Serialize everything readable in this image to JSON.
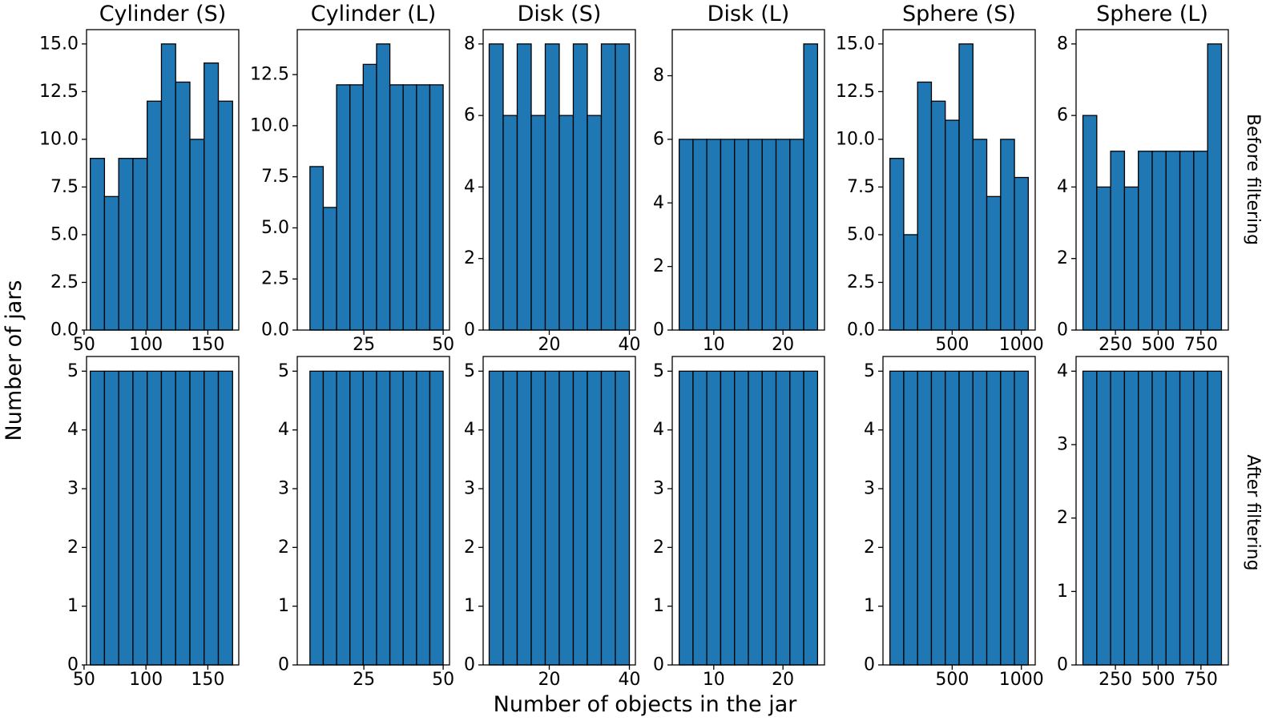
{
  "figure": {
    "xlabel": "Number of objects in the jar",
    "ylabel": "Number of jars",
    "row_labels": [
      "Before filtering",
      "After filtering"
    ]
  },
  "colors": {
    "bar_fill": "#1f77b4",
    "bar_edge": "#000000",
    "axes": "#000000"
  },
  "chart_data": [
    {
      "type": "bar",
      "panel": "Cylinder (S) - Before filtering",
      "title": "Cylinder (S)",
      "row": "Before filtering",
      "bin_start": 55,
      "bin_end": 170,
      "values": [
        9,
        7,
        9,
        9,
        12,
        15,
        13,
        10,
        14,
        12
      ],
      "xlim": [
        52,
        175
      ],
      "ylim": [
        0,
        15.75
      ],
      "xticks": [
        50,
        100,
        150
      ],
      "yticks": [
        0.0,
        2.5,
        5.0,
        7.5,
        10.0,
        12.5,
        15.0
      ],
      "ytick_labels": [
        "0.0",
        "2.5",
        "5.0",
        "7.5",
        "10.0",
        "12.5",
        "15.0"
      ]
    },
    {
      "type": "bar",
      "panel": "Cylinder (L) - Before filtering",
      "title": "Cylinder (L)",
      "row": "Before filtering",
      "bin_start": 8,
      "bin_end": 50,
      "values": [
        8,
        6,
        12,
        12,
        13,
        14,
        12,
        12,
        12,
        12
      ],
      "xlim": [
        4,
        52
      ],
      "ylim": [
        0,
        14.7
      ],
      "xticks": [
        25,
        50
      ],
      "yticks": [
        0.0,
        2.5,
        5.0,
        7.5,
        10.0,
        12.5
      ],
      "ytick_labels": [
        "0.0",
        "2.5",
        "5.0",
        "7.5",
        "10.0",
        "12.5"
      ]
    },
    {
      "type": "bar",
      "panel": "Disk (S) - Before filtering",
      "title": "Disk (S)",
      "row": "Before filtering",
      "bin_start": 5,
      "bin_end": 40,
      "values": [
        8,
        6,
        8,
        6,
        8,
        6,
        8,
        6,
        8,
        8
      ],
      "xlim": [
        3.5,
        41.5
      ],
      "ylim": [
        0,
        8.4
      ],
      "xticks": [
        20,
        40
      ],
      "yticks": [
        0,
        2,
        4,
        6,
        8
      ],
      "ytick_labels": [
        "0",
        "2",
        "4",
        "6",
        "8"
      ]
    },
    {
      "type": "bar",
      "panel": "Disk (L) - Before filtering",
      "title": "Disk (L)",
      "row": "Before filtering",
      "bin_start": 5,
      "bin_end": 25,
      "values": [
        6,
        6,
        6,
        6,
        6,
        6,
        6,
        6,
        6,
        9
      ],
      "xlim": [
        4,
        26
      ],
      "ylim": [
        0,
        9.45
      ],
      "xticks": [
        10,
        20
      ],
      "yticks": [
        0,
        2,
        4,
        6,
        8
      ],
      "ytick_labels": [
        "0",
        "2",
        "4",
        "6",
        "8"
      ]
    },
    {
      "type": "bar",
      "panel": "Sphere (S) - Before filtering",
      "title": "Sphere (S)",
      "row": "Before filtering",
      "bin_start": 50,
      "bin_end": 1050,
      "values": [
        9,
        5,
        13,
        12,
        11,
        15,
        10,
        7,
        10,
        8
      ],
      "xlim": [
        0,
        1100
      ],
      "ylim": [
        0,
        15.75
      ],
      "xticks": [
        500,
        1000
      ],
      "yticks": [
        0.0,
        2.5,
        5.0,
        7.5,
        10.0,
        12.5,
        15.0
      ],
      "ytick_labels": [
        "0.0",
        "2.5",
        "5.0",
        "7.5",
        "10.0",
        "12.5",
        "15.0"
      ]
    },
    {
      "type": "bar",
      "panel": "Sphere (L) - Before filtering",
      "title": "Sphere (L)",
      "row": "Before filtering",
      "bin_start": 60,
      "bin_end": 870,
      "values": [
        6,
        4,
        5,
        4,
        5,
        5,
        5,
        5,
        5,
        8
      ],
      "xlim": [
        20,
        910
      ],
      "ylim": [
        0,
        8.4
      ],
      "xticks": [
        250,
        500,
        750
      ],
      "yticks": [
        0,
        2,
        4,
        6,
        8
      ],
      "ytick_labels": [
        "0",
        "2",
        "4",
        "6",
        "8"
      ]
    },
    {
      "type": "bar",
      "panel": "Cylinder (S) - After filtering",
      "row": "After filtering",
      "bin_start": 55,
      "bin_end": 170,
      "values": [
        5,
        5,
        5,
        5,
        5,
        5,
        5,
        5,
        5,
        5
      ],
      "xlim": [
        52,
        175
      ],
      "ylim": [
        0,
        5.25
      ],
      "xticks": [
        50,
        100,
        150
      ],
      "yticks": [
        0,
        1,
        2,
        3,
        4,
        5
      ],
      "ytick_labels": [
        "0",
        "1",
        "2",
        "3",
        "4",
        "5"
      ]
    },
    {
      "type": "bar",
      "panel": "Cylinder (L) - After filtering",
      "row": "After filtering",
      "bin_start": 8,
      "bin_end": 50,
      "values": [
        5,
        5,
        5,
        5,
        5,
        5,
        5,
        5,
        5,
        5
      ],
      "xlim": [
        4,
        52
      ],
      "ylim": [
        0,
        5.25
      ],
      "xticks": [
        25,
        50
      ],
      "yticks": [
        0,
        1,
        2,
        3,
        4,
        5
      ],
      "ytick_labels": [
        "0",
        "1",
        "2",
        "3",
        "4",
        "5"
      ]
    },
    {
      "type": "bar",
      "panel": "Disk (S) - After filtering",
      "row": "After filtering",
      "bin_start": 5,
      "bin_end": 40,
      "values": [
        5,
        5,
        5,
        5,
        5,
        5,
        5,
        5,
        5,
        5
      ],
      "xlim": [
        3.5,
        41.5
      ],
      "ylim": [
        0,
        5.25
      ],
      "xticks": [
        20,
        40
      ],
      "yticks": [
        0,
        1,
        2,
        3,
        4,
        5
      ],
      "ytick_labels": [
        "0",
        "1",
        "2",
        "3",
        "4",
        "5"
      ]
    },
    {
      "type": "bar",
      "panel": "Disk (L) - After filtering",
      "row": "After filtering",
      "bin_start": 5,
      "bin_end": 25,
      "values": [
        5,
        5,
        5,
        5,
        5,
        5,
        5,
        5,
        5,
        5
      ],
      "xlim": [
        4,
        26
      ],
      "ylim": [
        0,
        5.25
      ],
      "xticks": [
        10,
        20
      ],
      "yticks": [
        0,
        1,
        2,
        3,
        4,
        5
      ],
      "ytick_labels": [
        "0",
        "1",
        "2",
        "3",
        "4",
        "5"
      ]
    },
    {
      "type": "bar",
      "panel": "Sphere (S) - After filtering",
      "row": "After filtering",
      "bin_start": 50,
      "bin_end": 1050,
      "values": [
        5,
        5,
        5,
        5,
        5,
        5,
        5,
        5,
        5,
        5
      ],
      "xlim": [
        0,
        1100
      ],
      "ylim": [
        0,
        5.25
      ],
      "xticks": [
        500,
        1000
      ],
      "yticks": [
        0,
        1,
        2,
        3,
        4,
        5
      ],
      "ytick_labels": [
        "0",
        "1",
        "2",
        "3",
        "4",
        "5"
      ]
    },
    {
      "type": "bar",
      "panel": "Sphere (L) - After filtering",
      "row": "After filtering",
      "bin_start": 60,
      "bin_end": 870,
      "values": [
        4,
        4,
        4,
        4,
        4,
        4,
        4,
        4,
        4,
        4
      ],
      "xlim": [
        20,
        910
      ],
      "ylim": [
        0,
        4.2
      ],
      "xticks": [
        250,
        500,
        750
      ],
      "yticks": [
        0,
        1,
        2,
        3,
        4
      ],
      "ytick_labels": [
        "0",
        "1",
        "2",
        "3",
        "4"
      ]
    }
  ]
}
